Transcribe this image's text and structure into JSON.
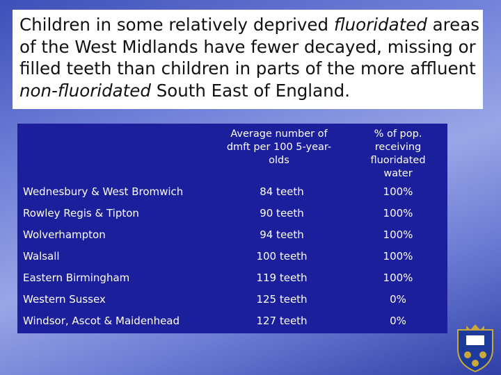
{
  "title": {
    "parts": [
      {
        "text": "Children in some relatively deprived ",
        "italic": false
      },
      {
        "text": "fluoridated",
        "italic": true
      },
      {
        "text": " areas of the West Midlands have fewer decayed, missing or filled teeth than children in parts of the more affluent ",
        "italic": false
      },
      {
        "text": "non-fluoridated",
        "italic": true
      },
      {
        "text": " South East of England.",
        "italic": false
      }
    ]
  },
  "table": {
    "header": [
      "Average number of dmft per 100 5-year-olds",
      "% of pop. receiving fluoridated water"
    ],
    "rows": [
      [
        "Wednesbury & West Bromwich",
        "84 teeth",
        "100%"
      ],
      [
        "Rowley Regis & Tipton",
        "90 teeth",
        "100%"
      ],
      [
        "Wolverhampton",
        "94 teeth",
        "100%"
      ],
      [
        "Walsall",
        "100 teeth",
        "100%"
      ],
      [
        "Eastern Birmingham",
        "119 teeth",
        "100%"
      ],
      [
        "Western Sussex",
        "125 teeth",
        "0%"
      ],
      [
        "Windsor, Ascot & Maidenhead",
        "127 teeth",
        "0%"
      ]
    ]
  }
}
